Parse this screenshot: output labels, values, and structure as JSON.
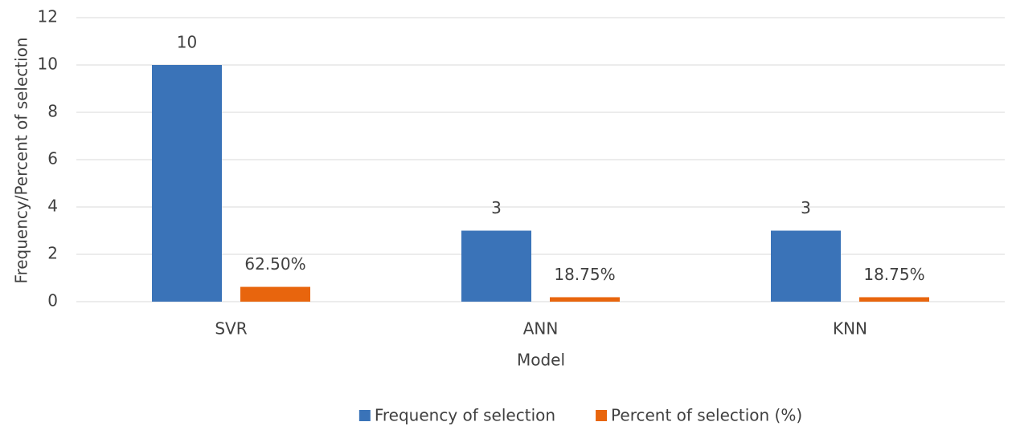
{
  "chart_data": {
    "type": "bar",
    "x_label": "Model",
    "y_label": "Frequency/Percent of selection",
    "categories": [
      "SVR",
      "ANN",
      "KNN"
    ],
    "series": [
      {
        "name": "Frequency of selection",
        "color": "#3a73b8",
        "values": [
          10,
          3,
          3
        ]
      },
      {
        "name": "Percent of selection (%)",
        "color": "#e8650d",
        "values": [
          0.625,
          0.1875,
          0.1875
        ],
        "value_labels": [
          "62.50%",
          "18.75%",
          "18.75%"
        ]
      }
    ],
    "ylim": [
      0,
      12
    ],
    "yticks": [
      0,
      2,
      4,
      6,
      8,
      10,
      12
    ],
    "grid": true,
    "legend": "bottom"
  }
}
